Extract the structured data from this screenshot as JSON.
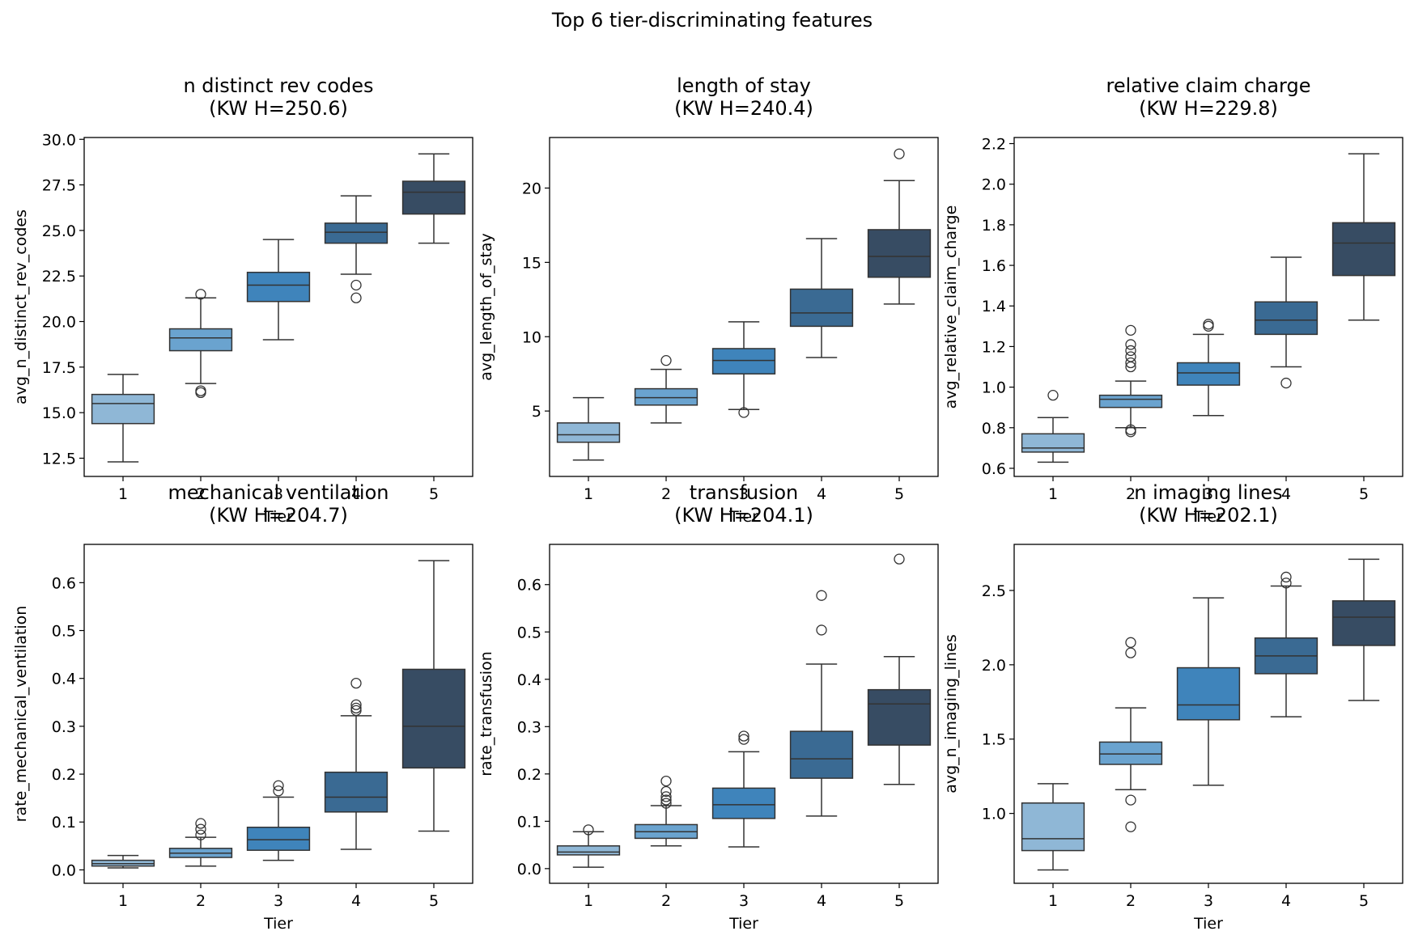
{
  "chart_data": {
    "suptitle": "Top 6 tier-discriminating features",
    "type": "boxplot",
    "palette": [
      "#8fb7d6",
      "#6aa3cf",
      "#3f84bb",
      "#3a6a93",
      "#374c63"
    ],
    "panels": [
      {
        "title_line1": "n distinct rev codes",
        "title_line2": "(KW H=250.6)",
        "xlabel": "Tier",
        "ylabel": "avg_n_distinct_rev_codes",
        "ylim": [
          11.5,
          30.1
        ],
        "yticks": [
          12.5,
          15.0,
          17.5,
          20.0,
          22.5,
          25.0,
          27.5,
          30.0
        ],
        "ytick_labels": [
          "12.5",
          "15.0",
          "17.5",
          "20.0",
          "22.5",
          "25.0",
          "27.5",
          "30.0"
        ],
        "categories": [
          "1",
          "2",
          "3",
          "4",
          "5"
        ],
        "boxes": [
          {
            "whislo": 12.3,
            "q1": 14.4,
            "med": 15.5,
            "q3": 16.0,
            "whishi": 17.1,
            "fliers": []
          },
          {
            "whislo": 16.6,
            "q1": 18.4,
            "med": 19.1,
            "q3": 19.6,
            "whishi": 21.3,
            "fliers": [
              21.5,
              16.1,
              16.2
            ]
          },
          {
            "whislo": 19.0,
            "q1": 21.1,
            "med": 22.0,
            "q3": 22.7,
            "whishi": 24.5,
            "fliers": []
          },
          {
            "whislo": 22.6,
            "q1": 24.3,
            "med": 24.9,
            "q3": 25.4,
            "whishi": 26.9,
            "fliers": [
              22.0,
              21.3
            ]
          },
          {
            "whislo": 24.3,
            "q1": 25.9,
            "med": 27.1,
            "q3": 27.7,
            "whishi": 29.2,
            "fliers": []
          }
        ]
      },
      {
        "title_line1": "length of stay",
        "title_line2": "(KW H=240.4)",
        "xlabel": "Tier",
        "ylabel": "avg_length_of_stay",
        "ylim": [
          0.6,
          23.4
        ],
        "yticks": [
          5,
          10,
          15,
          20
        ],
        "ytick_labels": [
          "5",
          "10",
          "15",
          "20"
        ],
        "categories": [
          "1",
          "2",
          "3",
          "4",
          "5"
        ],
        "boxes": [
          {
            "whislo": 1.7,
            "q1": 2.9,
            "med": 3.4,
            "q3": 4.2,
            "whishi": 5.9,
            "fliers": []
          },
          {
            "whislo": 4.2,
            "q1": 5.4,
            "med": 5.9,
            "q3": 6.5,
            "whishi": 7.8,
            "fliers": [
              8.4
            ]
          },
          {
            "whislo": 5.1,
            "q1": 7.5,
            "med": 8.4,
            "q3": 9.2,
            "whishi": 11.0,
            "fliers": [
              4.9
            ]
          },
          {
            "whislo": 8.6,
            "q1": 10.7,
            "med": 11.6,
            "q3": 13.2,
            "whishi": 16.6,
            "fliers": []
          },
          {
            "whislo": 12.2,
            "q1": 14.0,
            "med": 15.4,
            "q3": 17.2,
            "whishi": 20.5,
            "fliers": [
              22.3
            ]
          }
        ]
      },
      {
        "title_line1": "relative claim charge",
        "title_line2": "(KW H=229.8)",
        "xlabel": "Tier",
        "ylabel": "avg_relative_claim_charge",
        "ylim": [
          0.56,
          2.23
        ],
        "yticks": [
          0.6,
          0.8,
          1.0,
          1.2,
          1.4,
          1.6,
          1.8,
          2.0,
          2.2
        ],
        "ytick_labels": [
          "0.6",
          "0.8",
          "1.0",
          "1.2",
          "1.4",
          "1.6",
          "1.8",
          "2.0",
          "2.2"
        ],
        "categories": [
          "1",
          "2",
          "3",
          "4",
          "5"
        ],
        "boxes": [
          {
            "whislo": 0.63,
            "q1": 0.68,
            "med": 0.7,
            "q3": 0.77,
            "whishi": 0.85,
            "fliers": [
              0.96
            ]
          },
          {
            "whislo": 0.8,
            "q1": 0.9,
            "med": 0.94,
            "q3": 0.96,
            "whishi": 1.03,
            "fliers": [
              1.28,
              1.21,
              1.18,
              1.15,
              1.12,
              1.1,
              0.79,
              0.78
            ]
          },
          {
            "whislo": 0.86,
            "q1": 1.01,
            "med": 1.07,
            "q3": 1.12,
            "whishi": 1.26,
            "fliers": [
              1.31,
              1.3
            ]
          },
          {
            "whislo": 1.1,
            "q1": 1.26,
            "med": 1.33,
            "q3": 1.42,
            "whishi": 1.64,
            "fliers": [
              1.02
            ]
          },
          {
            "whislo": 1.33,
            "q1": 1.55,
            "med": 1.71,
            "q3": 1.81,
            "whishi": 2.15,
            "fliers": []
          }
        ]
      },
      {
        "title_line1": "mechanical ventilation",
        "title_line2": "(KW H=204.7)",
        "xlabel": "Tier",
        "ylabel": "rate_mechanical_ventilation",
        "ylim": [
          -0.028,
          0.68
        ],
        "yticks": [
          0.0,
          0.1,
          0.2,
          0.3,
          0.4,
          0.5,
          0.6
        ],
        "ytick_labels": [
          "0.0",
          "0.1",
          "0.2",
          "0.3",
          "0.4",
          "0.5",
          "0.6"
        ],
        "categories": [
          "1",
          "2",
          "3",
          "4",
          "5"
        ],
        "boxes": [
          {
            "whislo": 0.004,
            "q1": 0.008,
            "med": 0.013,
            "q3": 0.02,
            "whishi": 0.03,
            "fliers": []
          },
          {
            "whislo": 0.008,
            "q1": 0.026,
            "med": 0.035,
            "q3": 0.045,
            "whishi": 0.068,
            "fliers": [
              0.097,
              0.085,
              0.073
            ]
          },
          {
            "whislo": 0.02,
            "q1": 0.041,
            "med": 0.063,
            "q3": 0.089,
            "whishi": 0.152,
            "fliers": [
              0.176,
              0.165
            ]
          },
          {
            "whislo": 0.043,
            "q1": 0.121,
            "med": 0.152,
            "q3": 0.204,
            "whishi": 0.322,
            "fliers": [
              0.39,
              0.345,
              0.338,
              0.333
            ]
          },
          {
            "whislo": 0.081,
            "q1": 0.213,
            "med": 0.3,
            "q3": 0.419,
            "whishi": 0.646,
            "fliers": []
          }
        ]
      },
      {
        "title_line1": "transfusion",
        "title_line2": "(KW H=204.1)",
        "xlabel": "Tier",
        "ylabel": "rate_transfusion",
        "ylim": [
          -0.031,
          0.685
        ],
        "yticks": [
          0.0,
          0.1,
          0.2,
          0.3,
          0.4,
          0.5,
          0.6
        ],
        "ytick_labels": [
          "0.0",
          "0.1",
          "0.2",
          "0.3",
          "0.4",
          "0.5",
          "0.6"
        ],
        "categories": [
          "1",
          "2",
          "3",
          "4",
          "5"
        ],
        "boxes": [
          {
            "whislo": 0.003,
            "q1": 0.029,
            "med": 0.035,
            "q3": 0.048,
            "whishi": 0.078,
            "fliers": [
              0.082
            ]
          },
          {
            "whislo": 0.048,
            "q1": 0.064,
            "med": 0.078,
            "q3": 0.093,
            "whishi": 0.133,
            "fliers": [
              0.185,
              0.163,
              0.152,
              0.145,
              0.138
            ]
          },
          {
            "whislo": 0.046,
            "q1": 0.106,
            "med": 0.135,
            "q3": 0.17,
            "whishi": 0.247,
            "fliers": [
              0.28,
              0.273
            ]
          },
          {
            "whislo": 0.111,
            "q1": 0.191,
            "med": 0.232,
            "q3": 0.29,
            "whishi": 0.432,
            "fliers": [
              0.577,
              0.504
            ]
          },
          {
            "whislo": 0.178,
            "q1": 0.261,
            "med": 0.348,
            "q3": 0.378,
            "whishi": 0.448,
            "fliers": [
              0.654
            ]
          }
        ]
      },
      {
        "title_line1": "n imaging lines",
        "title_line2": "(KW H=202.1)",
        "xlabel": "Tier",
        "ylabel": "avg_n_imaging_lines",
        "ylim": [
          0.53,
          2.81
        ],
        "yticks": [
          1.0,
          1.5,
          2.0,
          2.5
        ],
        "ytick_labels": [
          "1.0",
          "1.5",
          "2.0",
          "2.5"
        ],
        "categories": [
          "1",
          "2",
          "3",
          "4",
          "5"
        ],
        "boxes": [
          {
            "whislo": 0.62,
            "q1": 0.75,
            "med": 0.83,
            "q3": 1.07,
            "whishi": 1.2,
            "fliers": []
          },
          {
            "whislo": 1.16,
            "q1": 1.33,
            "med": 1.4,
            "q3": 1.48,
            "whishi": 1.71,
            "fliers": [
              2.15,
              2.08,
              1.09,
              0.91
            ]
          },
          {
            "whislo": 1.19,
            "q1": 1.63,
            "med": 1.73,
            "q3": 1.98,
            "whishi": 2.45,
            "fliers": []
          },
          {
            "whislo": 1.65,
            "q1": 1.94,
            "med": 2.06,
            "q3": 2.18,
            "whishi": 2.53,
            "fliers": [
              2.59,
              2.55
            ]
          },
          {
            "whislo": 1.76,
            "q1": 2.13,
            "med": 2.32,
            "q3": 2.43,
            "whishi": 2.71,
            "fliers": []
          }
        ]
      }
    ]
  }
}
